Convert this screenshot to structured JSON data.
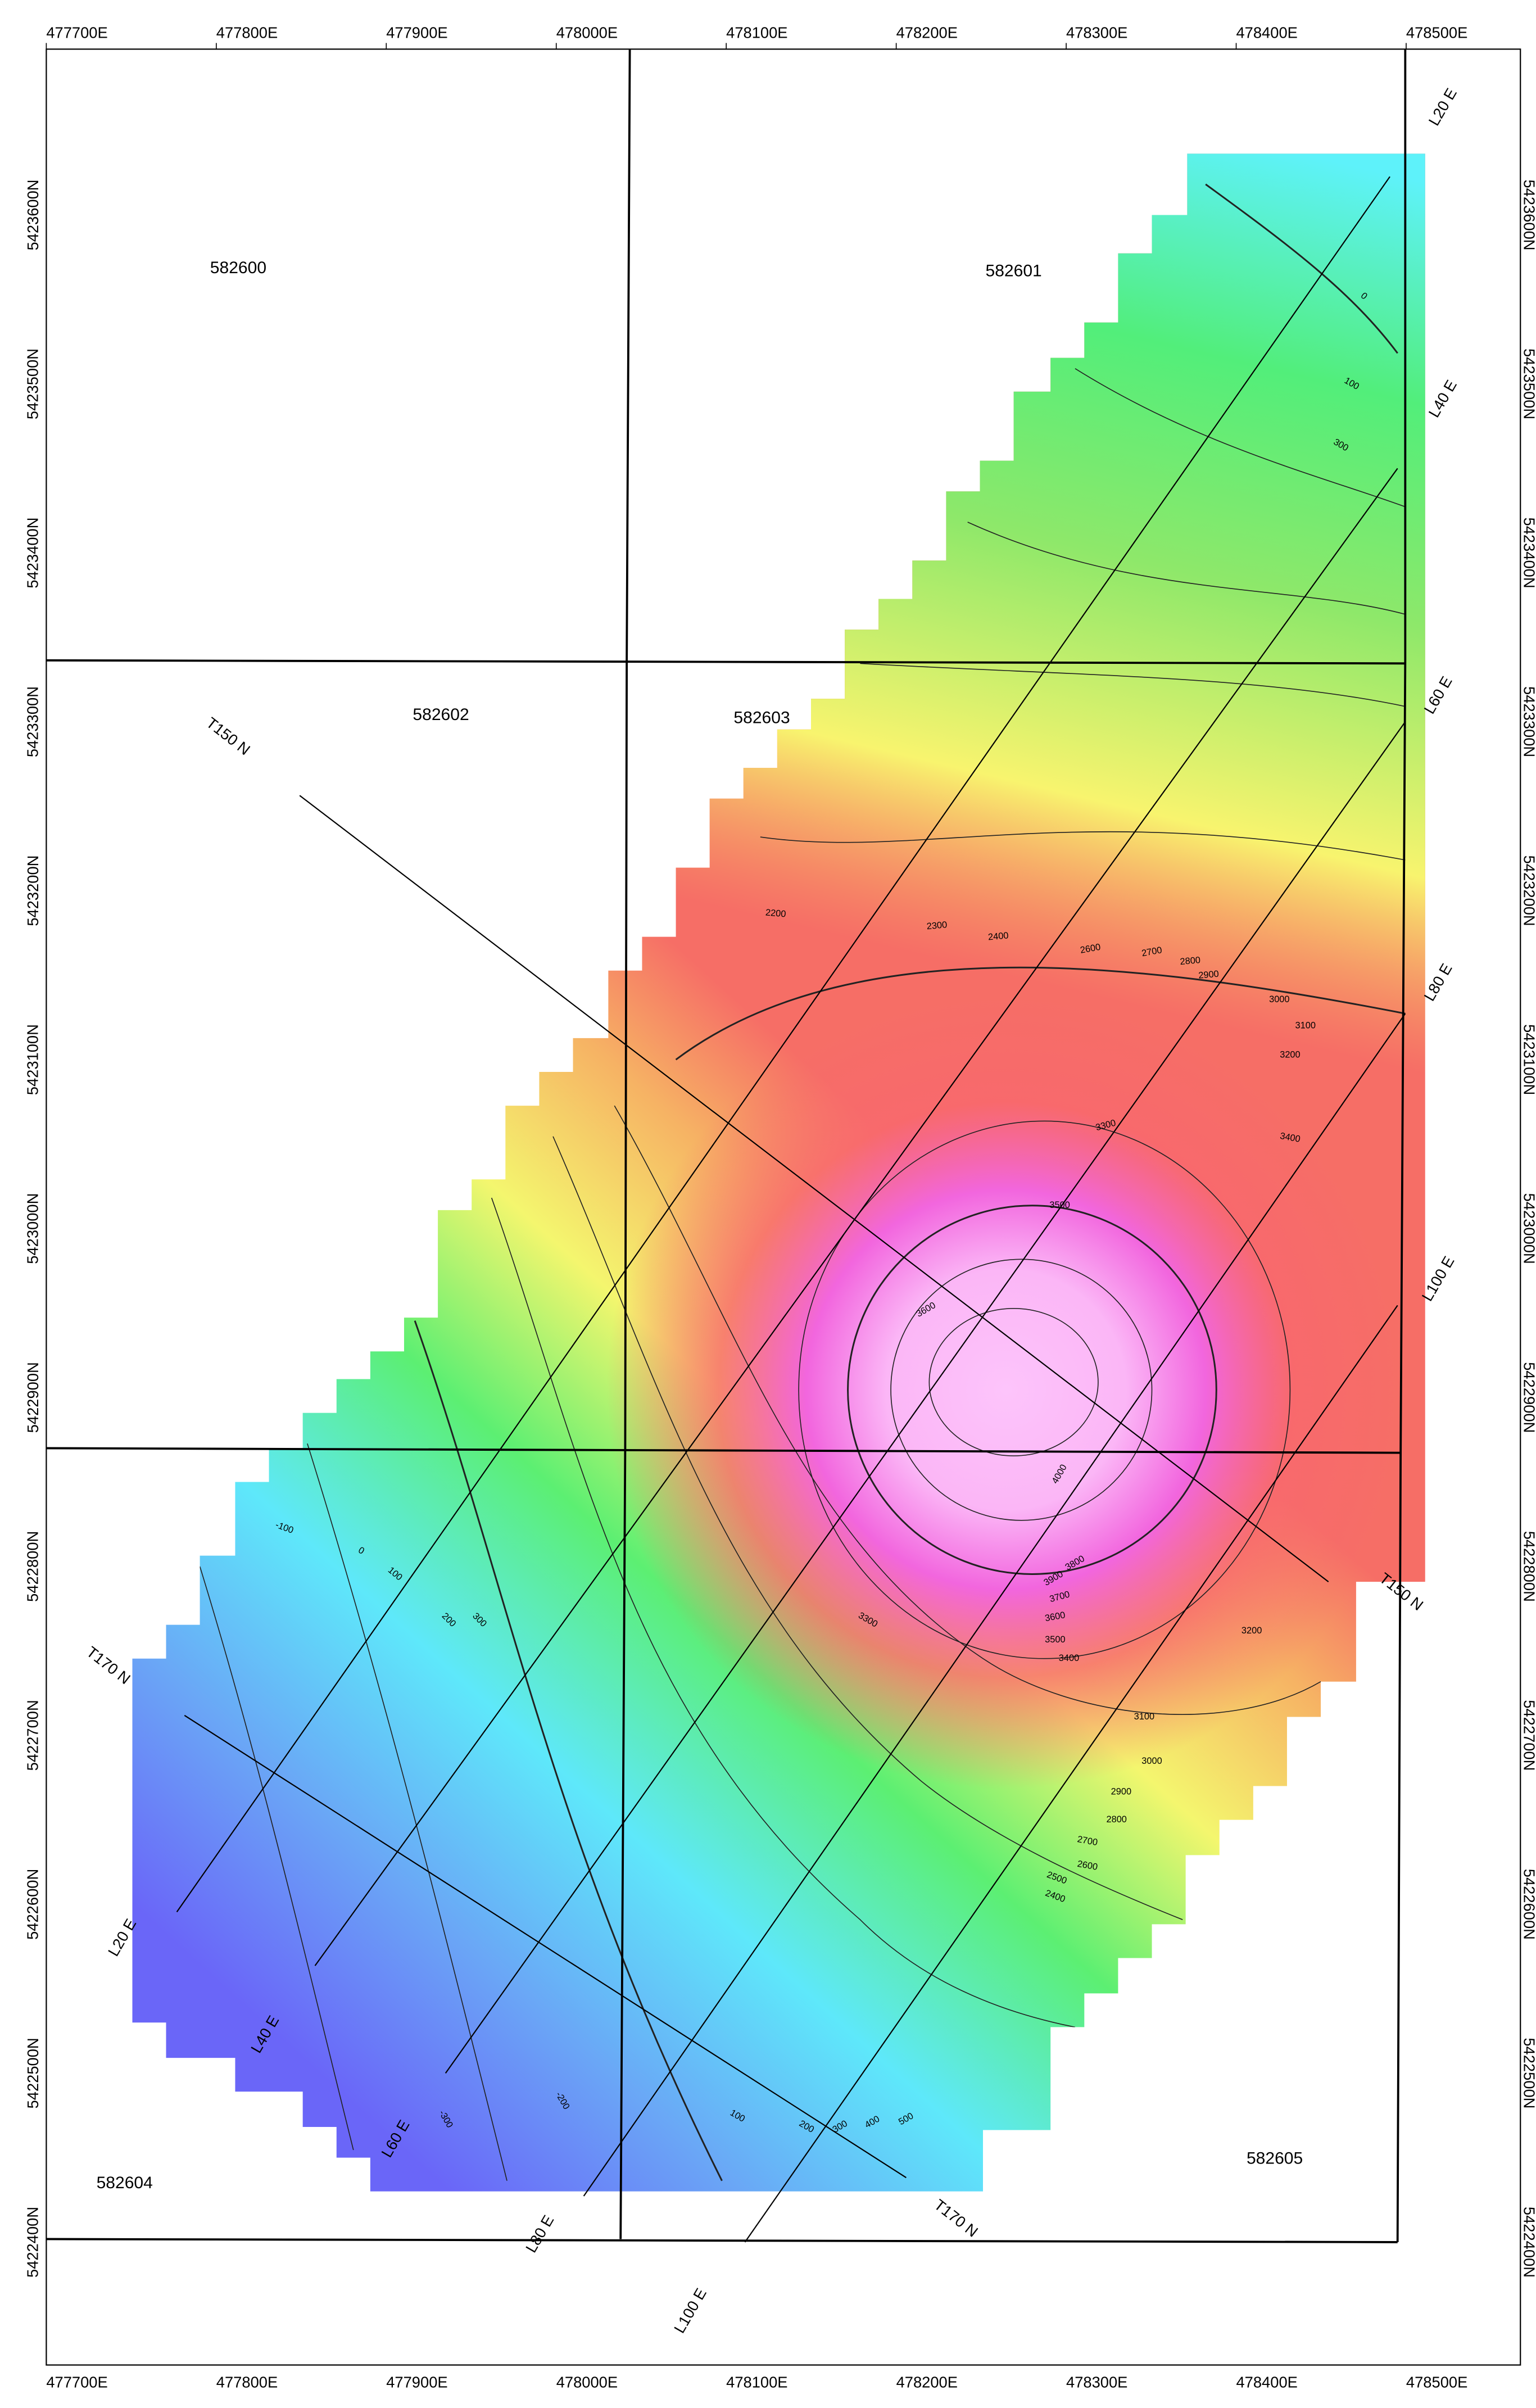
{
  "map": {
    "x_axis": {
      "ticks": [
        "477700E",
        "477800E",
        "477900E",
        "478000E",
        "478100E",
        "478200E",
        "478300E",
        "478400E",
        "478500E"
      ]
    },
    "y_axis": {
      "ticks": [
        "5423600N",
        "5423500N",
        "5423400N",
        "5423300N",
        "5423200N",
        "5423100N",
        "5423000N",
        "5422900N",
        "5422800N",
        "5422700N",
        "5422600N",
        "5422500N",
        "5422400N"
      ]
    },
    "claims": [
      "582600",
      "582601",
      "582602",
      "582603",
      "582604",
      "582605"
    ],
    "lines": [
      "L20 E",
      "L40 E",
      "L60 E",
      "L80 E",
      "L100 E"
    ],
    "traverses": [
      "T150 N",
      "T170 N"
    ],
    "contour_labels": [
      "0",
      "100",
      "300",
      "2200",
      "2300",
      "2400",
      "2600",
      "2700",
      "2800",
      "2900",
      "3000",
      "3100",
      "3200",
      "3300",
      "3400",
      "3500",
      "3600",
      "4000",
      "3900",
      "3800",
      "3700",
      "3600",
      "3500",
      "3400",
      "3300",
      "3200",
      "3100",
      "3000",
      "2900",
      "2800",
      "2700",
      "2600",
      "2500",
      "2400",
      "-100",
      "0",
      "100",
      "200",
      "300",
      "-200",
      "-300",
      "100",
      "200",
      "300",
      "400",
      "500"
    ]
  }
}
